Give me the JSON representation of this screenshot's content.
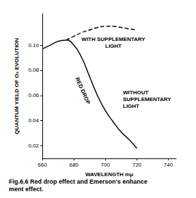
{
  "chart_data": {
    "type": "line",
    "title": "Fig.6.6 Red drop effect and Emerson's enhance\nment effect.",
    "x_label": "WAVELENGTH mμ",
    "y_label": "QUANTUM YIELD OF O₂ EVOLUTION",
    "xlim": [
      660,
      745
    ],
    "xticks": [
      660,
      680,
      700,
      720,
      740
    ],
    "ylim": [
      0.01,
      0.125
    ],
    "yticks": [
      0.02,
      0.04,
      0.06,
      0.08,
      {
        "value": 0.1,
        "label": "0.10"
      }
    ],
    "grid": false,
    "series": [
      {
        "color": "#000000",
        "line_style": "dashed",
        "x": [
          675,
          680,
          685,
          690,
          695,
          700,
          705,
          710,
          715,
          720
        ],
        "values": [
          0.104,
          0.107,
          0.11,
          0.112,
          0.114,
          0.115,
          0.115,
          0.114,
          0.113,
          0.112
        ]
      },
      {
        "color": "#000000",
        "line_style": "solid",
        "x": [
          660,
          665,
          670,
          675,
          680,
          685,
          690,
          695,
          700,
          705,
          710,
          715,
          720
        ],
        "values": [
          0.097,
          0.1,
          0.103,
          0.104,
          0.1,
          0.09,
          0.075,
          0.06,
          0.048,
          0.039,
          0.031,
          0.025,
          0.018
        ]
      }
    ],
    "annotations": [
      "WITH SUPPLEMENTARY\nLIGHT",
      "RED DROP",
      "WITHOUT\nSUPPLEMENTARY\nLIGHT"
    ]
  }
}
